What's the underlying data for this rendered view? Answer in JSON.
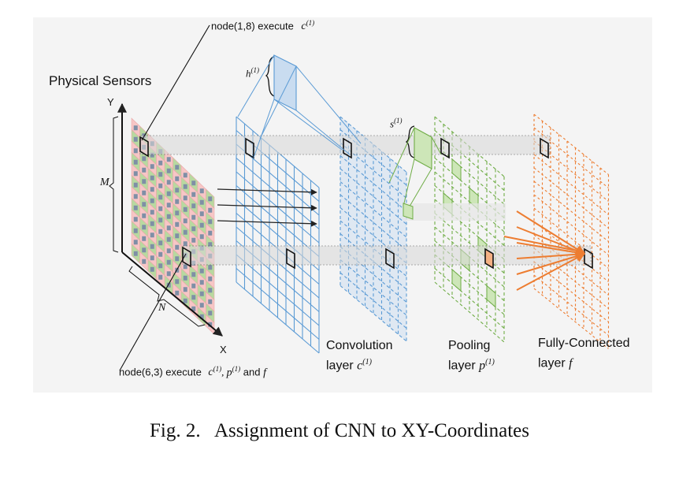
{
  "diagram": {
    "physical_sensors_label": "Physical Sensors",
    "axis_y": "Y",
    "axis_x": "X",
    "axis_m": "M",
    "axis_n": "N",
    "h_label": "h",
    "s_label": "s",
    "superscript": "(1)",
    "node_top": {
      "text": "node(1,8) execute",
      "math": "c"
    },
    "node_bottom": {
      "text": "node(6,3) execute",
      "math_c": "c",
      "comma": ", ",
      "math_p": "p",
      "and_text": " and ",
      "math_f": "f"
    },
    "layers": [
      {
        "line1": "Convolution",
        "line2": "layer",
        "math": "c",
        "sup": "(1)"
      },
      {
        "line1": "Pooling",
        "line2": "layer",
        "math": "p",
        "sup": "(1)"
      },
      {
        "line1": "Fully-Connected",
        "line2": "layer",
        "math": "f",
        "sup": ""
      }
    ],
    "colors": {
      "panel_bg": "#f4f4f4",
      "conv": "#5b9bd5",
      "conv_fill": "#c9dcf0",
      "pool": "#70ad47",
      "pool_fill": "#cde6b8",
      "fc": "#ed7d31",
      "sensor_pink": "#f7c6c6",
      "sensor_green": "#b8d9a0"
    }
  },
  "caption": "Fig. 2.   Assignment of CNN to XY-Coordinates"
}
